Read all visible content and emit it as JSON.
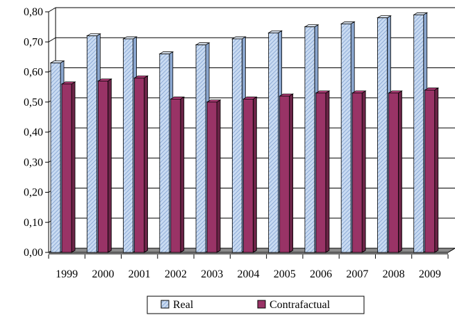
{
  "chart_data": {
    "type": "bar",
    "title": "",
    "xlabel": "",
    "ylabel": "",
    "categories": [
      "1999",
      "2000",
      "2001",
      "2002",
      "2003",
      "2004",
      "2005",
      "2006",
      "2007",
      "2008",
      "2009"
    ],
    "series": [
      {
        "name": "Real",
        "values": [
          0.63,
          0.72,
          0.71,
          0.66,
          0.69,
          0.71,
          0.73,
          0.75,
          0.76,
          0.78,
          0.79
        ],
        "color": "#aec6e8"
      },
      {
        "name": "Contrafactual",
        "values": [
          0.56,
          0.57,
          0.58,
          0.51,
          0.5,
          0.51,
          0.52,
          0.53,
          0.53,
          0.53,
          0.54
        ],
        "color": "#993366"
      }
    ],
    "ylim": [
      0,
      0.8
    ],
    "yticks": [
      "0,00",
      "0,10",
      "0,20",
      "0,30",
      "0,40",
      "0,50",
      "0,60",
      "0,70",
      "0,80"
    ],
    "grid": true,
    "legend": "bottom"
  }
}
